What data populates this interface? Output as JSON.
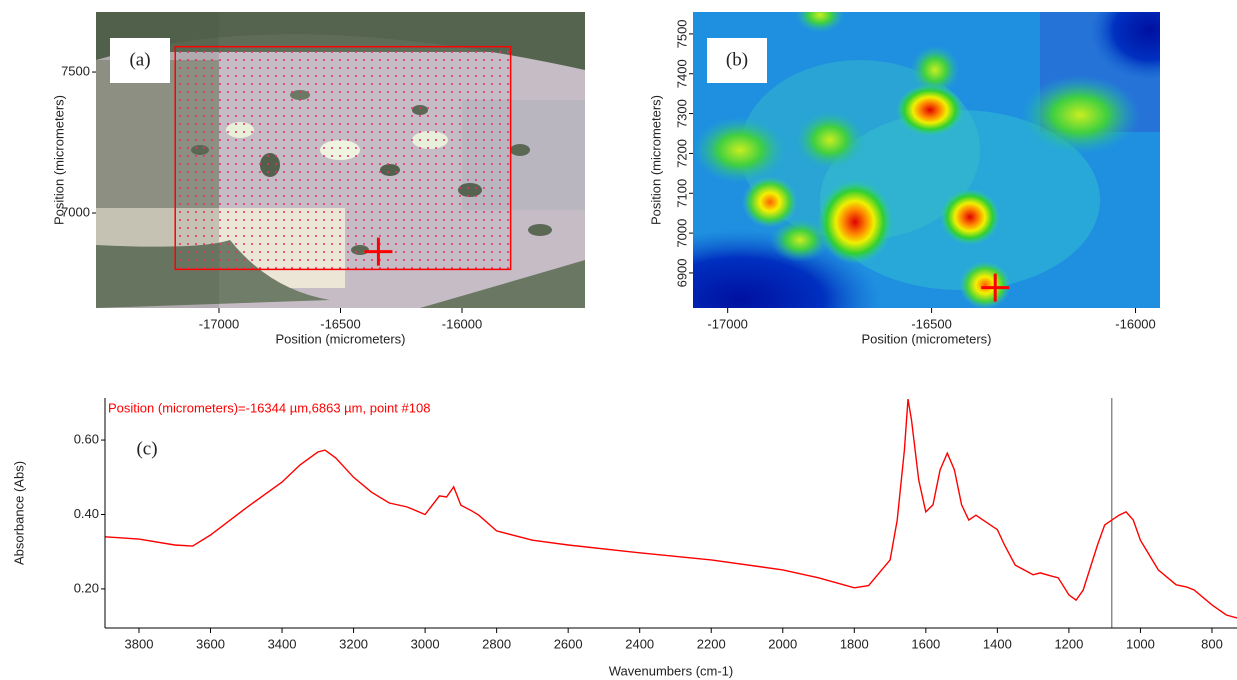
{
  "chart_data": [
    {
      "type": "image",
      "label": "(a)",
      "xlabel": "Position (micrometers)",
      "ylabel": "Position (micrometers)",
      "xlim": [
        -17506,
        -15494
      ],
      "ylim": [
        6663,
        7713
      ],
      "xticks": [
        -17000,
        -16500,
        -16000
      ],
      "yticks": [
        7000,
        7500
      ],
      "region": {
        "xlim": [
          -17180,
          -15800
        ],
        "ylim": [
          6800,
          7590
        ]
      },
      "marker": {
        "x": -16344,
        "y": 6863
      },
      "color": "#ff0000"
    },
    {
      "type": "heatmap",
      "label": "(b)",
      "xlabel": "Position (micrometers)",
      "ylabel": "Position (micrometers)",
      "xlim": [
        -17085,
        -15940
      ],
      "ylim": [
        6812,
        7555
      ],
      "xticks": [
        -17000,
        -16500,
        -16000
      ],
      "yticks": [
        6900,
        7000,
        7100,
        7200,
        7300,
        7400,
        7500
      ],
      "marker": {
        "x": -16344,
        "y": 6863
      },
      "color": "#ff0000"
    },
    {
      "type": "line",
      "label": "(c)",
      "annotation": "Position (micrometers)=-16344 µm,6863 µm, point #108",
      "xlabel": "Wavenumbers (cm-1)",
      "ylabel": "Absorbance (Abs)",
      "xlim": [
        3895,
        730
      ],
      "ylim": [
        0.095,
        0.713
      ],
      "xticks": [
        3800,
        3600,
        3400,
        3200,
        3000,
        2800,
        2600,
        2400,
        2200,
        2000,
        1800,
        1600,
        1400,
        1200,
        1000,
        800
      ],
      "yticks": [
        {
          "value": 0.6,
          "label": "0.60"
        },
        {
          "value": 0.4,
          "label": "0.40"
        },
        {
          "value": 0.2,
          "label": "0.20"
        }
      ],
      "cursor": 1080,
      "color": "#ff0000",
      "x": [
        3895,
        3800,
        3700,
        3650,
        3600,
        3500,
        3400,
        3350,
        3300,
        3280,
        3250,
        3200,
        3150,
        3100,
        3050,
        3000,
        2960,
        2940,
        2920,
        2900,
        2870,
        2850,
        2800,
        2700,
        2600,
        2400,
        2200,
        2000,
        1900,
        1800,
        1760,
        1700,
        1680,
        1660,
        1650,
        1640,
        1620,
        1600,
        1580,
        1560,
        1540,
        1520,
        1500,
        1480,
        1460,
        1440,
        1400,
        1380,
        1350,
        1300,
        1280,
        1250,
        1230,
        1200,
        1180,
        1160,
        1120,
        1100,
        1060,
        1040,
        1020,
        1000,
        950,
        900,
        870,
        850,
        800,
        760,
        730
      ],
      "values": [
        0.34,
        0.334,
        0.318,
        0.315,
        0.345,
        0.418,
        0.487,
        0.533,
        0.568,
        0.573,
        0.552,
        0.5,
        0.46,
        0.431,
        0.42,
        0.4,
        0.45,
        0.447,
        0.474,
        0.425,
        0.41,
        0.398,
        0.356,
        0.331,
        0.318,
        0.297,
        0.278,
        0.251,
        0.23,
        0.203,
        0.209,
        0.278,
        0.385,
        0.573,
        0.71,
        0.654,
        0.493,
        0.407,
        0.426,
        0.52,
        0.565,
        0.52,
        0.426,
        0.385,
        0.398,
        0.385,
        0.359,
        0.318,
        0.264,
        0.238,
        0.243,
        0.235,
        0.23,
        0.184,
        0.17,
        0.197,
        0.318,
        0.372,
        0.398,
        0.407,
        0.385,
        0.331,
        0.251,
        0.211,
        0.205,
        0.197,
        0.157,
        0.13,
        0.122
      ]
    }
  ]
}
